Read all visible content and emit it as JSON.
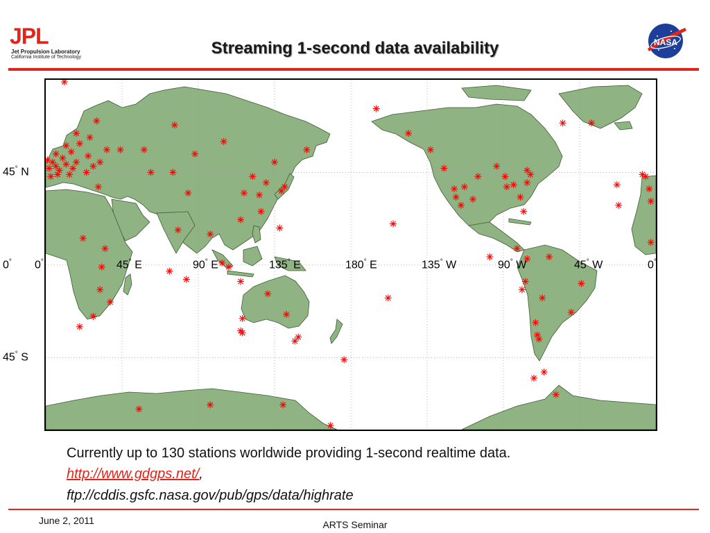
{
  "header": {
    "logo_left": {
      "mark": "JPL",
      "line1": "Jet Propulsion Laboratory",
      "line2": "California Institute of Technology"
    },
    "title": "Streaming 1-second data availability",
    "logo_right": {
      "text": "NASA"
    },
    "rule_color": "#e1251b"
  },
  "map": {
    "type": "world station map",
    "projection": "equirectangular",
    "center_longitude": 180,
    "lat_range": [
      -80,
      90
    ],
    "land_color": "#8fb383",
    "grid": "dotted",
    "marker_color": "#ff0000",
    "marker_icon": "asterisk-icon",
    "lat_labels": [
      {
        "lat": 45,
        "deg": "45",
        "hem": "N"
      },
      {
        "lat": 0,
        "deg": "0",
        "hem": ""
      },
      {
        "lat": -45,
        "deg": "45",
        "hem": "S"
      }
    ],
    "lon_labels": [
      {
        "lon": 0,
        "deg": "0",
        "hem": ""
      },
      {
        "lon": 45,
        "deg": "45",
        "hem": "E"
      },
      {
        "lon": 90,
        "deg": "90",
        "hem": "E"
      },
      {
        "lon": 135,
        "deg": "135",
        "hem": "E"
      },
      {
        "lon": 180,
        "deg": "180",
        "hem": "E"
      },
      {
        "lon": 225,
        "deg": "135",
        "hem": "W"
      },
      {
        "lon": 270,
        "deg": "90",
        "hem": "W"
      },
      {
        "lon": 315,
        "deg": "45",
        "hem": "W"
      },
      {
        "lon": 360,
        "deg": "0",
        "hem": ""
      }
    ],
    "stations": [
      [
        11,
        89
      ],
      [
        8,
        46
      ],
      [
        6,
        48
      ],
      [
        4,
        50
      ],
      [
        10,
        52
      ],
      [
        12,
        49
      ],
      [
        2,
        47
      ],
      [
        1,
        51
      ],
      [
        14,
        44
      ],
      [
        15,
        55
      ],
      [
        7,
        44
      ],
      [
        6,
        54
      ],
      [
        3,
        43
      ],
      [
        12,
        58
      ],
      [
        20,
        59
      ],
      [
        18,
        50
      ],
      [
        24,
        45
      ],
      [
        26,
        62
      ],
      [
        28,
        48
      ],
      [
        32,
        50
      ],
      [
        31,
        38
      ],
      [
        25,
        53
      ],
      [
        18,
        64
      ],
      [
        30,
        70
      ],
      [
        36,
        56
      ],
      [
        16,
        47
      ],
      [
        44,
        56
      ],
      [
        58,
        56
      ],
      [
        76,
        68
      ],
      [
        75,
        45
      ],
      [
        62,
        45
      ],
      [
        84,
        35
      ],
      [
        78,
        17
      ],
      [
        88,
        54
      ],
      [
        105,
        60
      ],
      [
        122,
        43
      ],
      [
        135,
        50
      ],
      [
        130,
        40
      ],
      [
        126,
        34
      ],
      [
        117,
        35
      ],
      [
        127,
        26
      ],
      [
        115,
        22
      ],
      [
        139,
        36
      ],
      [
        141,
        38
      ],
      [
        154,
        56
      ],
      [
        138,
        18
      ],
      [
        115,
        -8
      ],
      [
        108,
        -1
      ],
      [
        104,
        1
      ],
      [
        83,
        -7
      ],
      [
        73,
        -3
      ],
      [
        33,
        -1
      ],
      [
        35,
        8
      ],
      [
        32,
        -12
      ],
      [
        38,
        -18
      ],
      [
        28,
        -25
      ],
      [
        20,
        -30
      ],
      [
        97,
        15
      ],
      [
        142,
        -24
      ],
      [
        131,
        -14
      ],
      [
        116,
        -26
      ],
      [
        115,
        -32
      ],
      [
        116,
        -33
      ],
      [
        147,
        -37
      ],
      [
        149,
        -35
      ],
      [
        176,
        -46
      ],
      [
        140,
        -68
      ],
      [
        55,
        -70
      ],
      [
        97,
        -68
      ],
      [
        168,
        -78
      ],
      [
        205,
        20
      ],
      [
        202,
        -16
      ],
      [
        195,
        76
      ],
      [
        214,
        64
      ],
      [
        227,
        56
      ],
      [
        235,
        47
      ],
      [
        241,
        37
      ],
      [
        242,
        33
      ],
      [
        245,
        29
      ],
      [
        252,
        32
      ],
      [
        247,
        38
      ],
      [
        255,
        43
      ],
      [
        266,
        48
      ],
      [
        271,
        43
      ],
      [
        272,
        38
      ],
      [
        276,
        39
      ],
      [
        284,
        40
      ],
      [
        286,
        44
      ],
      [
        284,
        46
      ],
      [
        280,
        33
      ],
      [
        282,
        26
      ],
      [
        278,
        8
      ],
      [
        262,
        4
      ],
      [
        284,
        3
      ],
      [
        297,
        4
      ],
      [
        281,
        -12
      ],
      [
        283,
        -8
      ],
      [
        293,
        -16
      ],
      [
        289,
        -28
      ],
      [
        290,
        -34
      ],
      [
        291,
        -36
      ],
      [
        310,
        -23
      ],
      [
        316,
        -9
      ],
      [
        288,
        -55
      ],
      [
        294,
        -52
      ],
      [
        301,
        -63
      ],
      [
        305,
        69
      ],
      [
        322,
        69
      ],
      [
        337,
        39
      ],
      [
        352,
        44
      ],
      [
        354,
        43
      ],
      [
        356,
        37
      ],
      [
        357,
        31
      ],
      [
        357,
        11
      ],
      [
        338,
        29
      ],
      [
        22,
        13
      ]
    ]
  },
  "caption": {
    "text": "Currently up to 130 stations worldwide providing 1-second realtime data.",
    "link": "http://www.gdgps.net/",
    "link_suffix": ",",
    "ftp": "ftp://cddis.gsfc.nasa.gov/pub/gps/data/highrate"
  },
  "footer": {
    "date": "June 2, 2011",
    "center": "ARTS Seminar"
  }
}
